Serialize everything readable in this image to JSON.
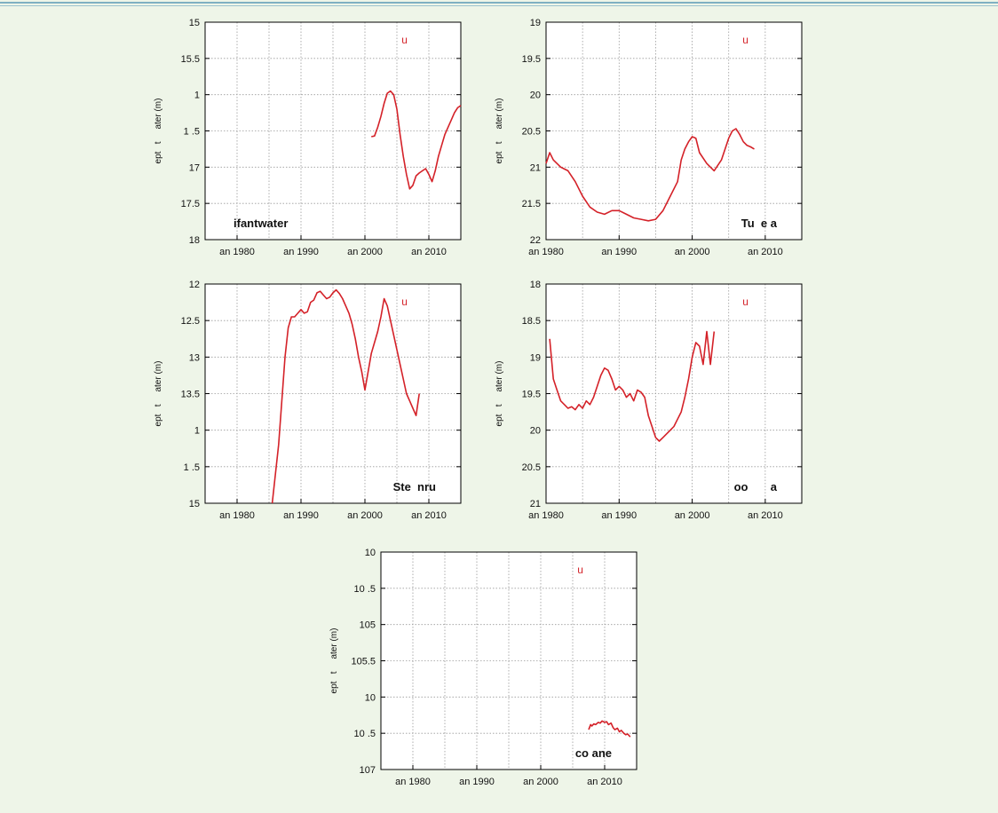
{
  "colors": {
    "series": "#d42128",
    "background": "#eef5e8",
    "grid": "#9a9a9a"
  },
  "chart_data": [
    {
      "type": "line",
      "panel_label": "ifantwater",
      "legend": "u",
      "ylabel": "ept   t     ater (m)",
      "x_ticks": [
        "an 1980",
        "an 1990",
        "an 2000",
        "an 2010"
      ],
      "x_tick_years": [
        1980,
        1990,
        2000,
        2010
      ],
      "xlim": [
        1975,
        2015
      ],
      "y_ticks": [
        "15",
        "15.5",
        "1",
        "1 .5",
        "17",
        "17.5",
        "18"
      ],
      "ylim": [
        15,
        18
      ],
      "grid": true,
      "x": [
        2001.0,
        2001.5,
        2002,
        2002.5,
        2003,
        2003.5,
        2004,
        2004.5,
        2005,
        2005.5,
        2006,
        2006.5,
        2007,
        2007.5,
        2008,
        2008.5,
        2009,
        2009.5,
        2010,
        2010.5,
        2011,
        2011.5,
        2012,
        2012.5,
        2013,
        2013.5,
        2014,
        2014.5,
        2015
      ],
      "y": [
        16.58,
        16.57,
        16.45,
        16.3,
        16.12,
        15.98,
        15.95,
        16.0,
        16.2,
        16.55,
        16.85,
        17.1,
        17.3,
        17.25,
        17.12,
        17.08,
        17.05,
        17.02,
        17.1,
        17.2,
        17.05,
        16.85,
        16.7,
        16.55,
        16.45,
        16.35,
        16.25,
        16.18,
        16.15
      ]
    },
    {
      "type": "line",
      "panel_label": "Tu  e a",
      "legend": "u",
      "ylabel": "ept   t     ater (m)",
      "x_ticks": [
        "an 1980",
        "an 1990",
        "an 2000",
        "an 2010"
      ],
      "x_tick_years": [
        1980,
        1990,
        2000,
        2010
      ],
      "xlim": [
        1980,
        2015
      ],
      "y_ticks": [
        "19",
        "19.5",
        "20",
        "20.5",
        "21",
        "21.5",
        "22"
      ],
      "ylim": [
        19,
        22
      ],
      "grid": true,
      "x": [
        1980,
        1980.5,
        1981,
        1982,
        1983,
        1984,
        1985,
        1986,
        1987,
        1988,
        1989,
        1990,
        1991,
        1992,
        1993,
        1994,
        1995,
        1996,
        1997,
        1998,
        1998.5,
        1999,
        1999.5,
        2000,
        2000.5,
        2001,
        2002,
        2003,
        2004,
        2005,
        2005.5,
        2006,
        2006.5,
        2007,
        2007.5,
        2008,
        2008.5
      ],
      "y": [
        20.95,
        20.8,
        20.9,
        21.0,
        21.05,
        21.2,
        21.4,
        21.55,
        21.62,
        21.65,
        21.6,
        21.6,
        21.65,
        21.7,
        21.72,
        21.74,
        21.72,
        21.6,
        21.4,
        21.2,
        20.9,
        20.75,
        20.65,
        20.58,
        20.6,
        20.8,
        20.95,
        21.05,
        20.9,
        20.6,
        20.5,
        20.47,
        20.55,
        20.65,
        20.7,
        20.72,
        20.75
      ]
    },
    {
      "type": "line",
      "panel_label": "Ste  nru",
      "legend": "u",
      "ylabel": "ept   t     ater (m)",
      "x_ticks": [
        "an 1980",
        "an 1990",
        "an 2000",
        "an 2010"
      ],
      "x_tick_years": [
        1980,
        1990,
        2000,
        2010
      ],
      "xlim": [
        1975,
        2015
      ],
      "y_ticks": [
        "12",
        "12.5",
        "13",
        "13.5",
        "1",
        "1 .5",
        "15"
      ],
      "ylim": [
        12,
        15
      ],
      "grid": true,
      "x": [
        1985.5,
        1986,
        1986.5,
        1987,
        1987.5,
        1988,
        1988.5,
        1989,
        1989.5,
        1990,
        1990.5,
        1991,
        1991.5,
        1992,
        1992.5,
        1993,
        1993.5,
        1994,
        1994.5,
        1995,
        1995.5,
        1996,
        1996.5,
        1997,
        1997.5,
        1998,
        1998.5,
        1999,
        1999.5,
        2000,
        2000.5,
        2001,
        2001.5,
        2002,
        2002.5,
        2003,
        2003.5,
        2004,
        2004.5,
        2005,
        2005.5,
        2006,
        2006.5,
        2007,
        2007.5,
        2008,
        2008.5
      ],
      "y": [
        15.0,
        14.6,
        14.2,
        13.6,
        13.0,
        12.6,
        12.45,
        12.45,
        12.4,
        12.35,
        12.4,
        12.38,
        12.25,
        12.22,
        12.12,
        12.1,
        12.15,
        12.2,
        12.18,
        12.12,
        12.08,
        12.13,
        12.2,
        12.3,
        12.4,
        12.55,
        12.75,
        13.0,
        13.2,
        13.45,
        13.2,
        12.95,
        12.8,
        12.65,
        12.45,
        12.2,
        12.3,
        12.5,
        12.7,
        12.9,
        13.1,
        13.3,
        13.5,
        13.6,
        13.7,
        13.8,
        13.5
      ]
    },
    {
      "type": "line",
      "panel_label": "oo       a",
      "legend": "u",
      "ylabel": "ept   t     ater (m)",
      "x_ticks": [
        "an 1980",
        "an 1990",
        "an 2000",
        "an 2010"
      ],
      "x_tick_years": [
        1980,
        1990,
        2000,
        2010
      ],
      "xlim": [
        1980,
        2015
      ],
      "y_ticks": [
        "18",
        "18.5",
        "19",
        "19.5",
        "20",
        "20.5",
        "21"
      ],
      "ylim": [
        18,
        21
      ],
      "grid": true,
      "x": [
        1980.5,
        1981,
        1981.5,
        1982,
        1982.5,
        1983,
        1983.5,
        1984,
        1984.5,
        1985,
        1985.5,
        1986,
        1986.5,
        1987,
        1987.5,
        1988,
        1988.5,
        1989,
        1989.5,
        1990,
        1990.5,
        1991,
        1991.5,
        1992,
        1992.5,
        1993,
        1993.5,
        1994,
        1994.5,
        1995,
        1995.5,
        1996,
        1996.5,
        1997,
        1997.5,
        1998,
        1998.5,
        1999,
        1999.5,
        2000,
        2000.5,
        2001,
        2001.5,
        2002,
        2002.5,
        2003
      ],
      "y": [
        18.75,
        19.3,
        19.45,
        19.6,
        19.65,
        19.7,
        19.68,
        19.72,
        19.65,
        19.7,
        19.6,
        19.65,
        19.55,
        19.4,
        19.25,
        19.15,
        19.18,
        19.3,
        19.45,
        19.4,
        19.45,
        19.55,
        19.5,
        19.6,
        19.45,
        19.48,
        19.55,
        19.8,
        19.95,
        20.1,
        20.15,
        20.1,
        20.05,
        20.0,
        19.95,
        19.85,
        19.75,
        19.55,
        19.3,
        19.0,
        18.8,
        18.85,
        19.1,
        18.65,
        19.1,
        18.65
      ]
    },
    {
      "type": "line",
      "panel_label": "co ane",
      "legend": "u",
      "ylabel": "ept   t     ater (m)",
      "x_ticks": [
        "an 1980",
        "an 1990",
        "an 2000",
        "an 2010"
      ],
      "x_tick_years": [
        1980,
        1990,
        2000,
        2010
      ],
      "xlim": [
        1975,
        2015
      ],
      "y_ticks": [
        "10",
        "10 .5",
        "105",
        "105.5",
        "10",
        "10 .5",
        "107"
      ],
      "ylim": [
        104,
        107
      ],
      "grid": true,
      "x": [
        2007.5,
        2007.8,
        2008,
        2008.3,
        2008.6,
        2009,
        2009.3,
        2009.6,
        2010,
        2010.3,
        2010.6,
        2011,
        2011.3,
        2011.6,
        2012,
        2012.3,
        2012.6,
        2013,
        2013.3,
        2013.6,
        2014
      ],
      "y": [
        106.45,
        106.38,
        106.4,
        106.37,
        106.38,
        106.35,
        106.36,
        106.33,
        106.35,
        106.34,
        106.38,
        106.36,
        106.42,
        106.45,
        106.43,
        106.48,
        106.46,
        106.5,
        106.52,
        106.51,
        106.55
      ]
    }
  ]
}
